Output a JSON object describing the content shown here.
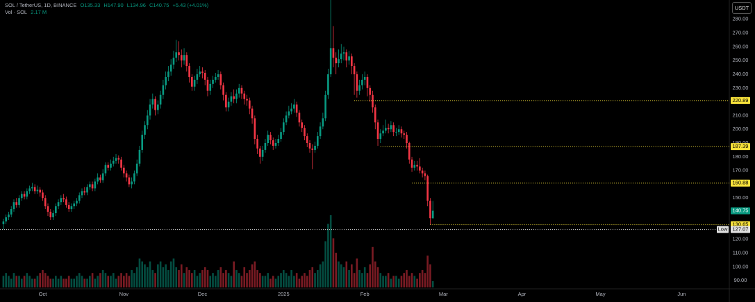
{
  "chart_data": {
    "type": "candlestick",
    "symbol": "SOL / TetherUS, 1D, BINANCE",
    "ohlc_labels": [
      "O135.33",
      "H147.90",
      "L134.96",
      "C140.75"
    ],
    "change_label": "+5.43 (+4.01%)",
    "volume_title": "Vol · SOL",
    "volume_last_label": "2.17 M",
    "currency": "USDT",
    "low_label": "Low",
    "up_color": "#089981",
    "down_color": "#f23645",
    "level_color": "#f7e13b",
    "grid": false,
    "xlim": [
      -1.3,
      277.2
    ],
    "xticks": [
      {
        "value": 15,
        "label": "Oct"
      },
      {
        "value": 46,
        "label": "Nov"
      },
      {
        "value": 76,
        "label": "Dec"
      },
      {
        "value": 107,
        "label": "2025"
      },
      {
        "value": 138,
        "label": "Feb"
      },
      {
        "value": 168,
        "label": "Mar"
      },
      {
        "value": 198,
        "label": "Apr"
      },
      {
        "value": 228,
        "label": "May"
      },
      {
        "value": 259,
        "label": "Jun"
      }
    ],
    "ylim": [
      85,
      294
    ],
    "yticks": [
      {
        "value": 280,
        "label": "280.00"
      },
      {
        "value": 270,
        "label": "270.00"
      },
      {
        "value": 260,
        "label": "260.00"
      },
      {
        "value": 250,
        "label": "250.00"
      },
      {
        "value": 240,
        "label": "240.00"
      },
      {
        "value": 230,
        "label": "230.00"
      },
      {
        "value": 210,
        "label": "210.00"
      },
      {
        "value": 200,
        "label": "200.00"
      },
      {
        "value": 190,
        "label": "190.00"
      },
      {
        "value": 180,
        "label": "180.00"
      },
      {
        "value": 170,
        "label": "170.00"
      },
      {
        "value": 150,
        "label": "150.00"
      },
      {
        "value": 120,
        "label": "120.00"
      },
      {
        "value": 110,
        "label": "110.00"
      },
      {
        "value": 100,
        "label": "100.00"
      },
      {
        "value": 90,
        "label": "90.00"
      }
    ],
    "levels": [
      {
        "value": 220.89,
        "from": 134
      },
      {
        "value": 187.39,
        "from": 144
      },
      {
        "value": 160.88,
        "from": 156
      },
      {
        "value": 130.65,
        "from": 163
      }
    ],
    "candles": [
      [
        131,
        135,
        127.07,
        133
      ],
      [
        133,
        138,
        131,
        136
      ],
      [
        136,
        140,
        134,
        138
      ],
      [
        138,
        144,
        136,
        142
      ],
      [
        142,
        149,
        140,
        147
      ],
      [
        147,
        150,
        143,
        145
      ],
      [
        145,
        152,
        143,
        150
      ],
      [
        150,
        155,
        148,
        153
      ],
      [
        153,
        155,
        149,
        151
      ],
      [
        151,
        157,
        149,
        155
      ],
      [
        155,
        159,
        153,
        157
      ],
      [
        157,
        161,
        155,
        158
      ],
      [
        158,
        160,
        153,
        155
      ],
      [
        155,
        159,
        153,
        156
      ],
      [
        156,
        158,
        151,
        154
      ],
      [
        154,
        156,
        148,
        150
      ],
      [
        150,
        152,
        142,
        144
      ],
      [
        144,
        146,
        137,
        140
      ],
      [
        140,
        142,
        134,
        136
      ],
      [
        136,
        141,
        134,
        139
      ],
      [
        139,
        146,
        137,
        144
      ],
      [
        144,
        149,
        142,
        147
      ],
      [
        147,
        152,
        145,
        150
      ],
      [
        150,
        153,
        147,
        149
      ],
      [
        149,
        151,
        143,
        145
      ],
      [
        145,
        147,
        140,
        142
      ],
      [
        142,
        146,
        140,
        144
      ],
      [
        144,
        148,
        142,
        146
      ],
      [
        146,
        150,
        144,
        148
      ],
      [
        148,
        154,
        146,
        152
      ],
      [
        152,
        157,
        150,
        155
      ],
      [
        155,
        158,
        152,
        154
      ],
      [
        154,
        160,
        152,
        158
      ],
      [
        158,
        162,
        156,
        160
      ],
      [
        160,
        162,
        155,
        157
      ],
      [
        157,
        164,
        155,
        162
      ],
      [
        162,
        168,
        160,
        165
      ],
      [
        165,
        167,
        161,
        163
      ],
      [
        163,
        171,
        161,
        168
      ],
      [
        168,
        176,
        166,
        174
      ],
      [
        174,
        176,
        170,
        172
      ],
      [
        172,
        178,
        170,
        175
      ],
      [
        175,
        180,
        173,
        177
      ],
      [
        177,
        182,
        175,
        179
      ],
      [
        179,
        181,
        175,
        178
      ],
      [
        178,
        180,
        170,
        172
      ],
      [
        172,
        174,
        165,
        168
      ],
      [
        168,
        170,
        162,
        165
      ],
      [
        165,
        167,
        158,
        160
      ],
      [
        160,
        165,
        157,
        162
      ],
      [
        162,
        170,
        160,
        168
      ],
      [
        168,
        178,
        166,
        175
      ],
      [
        175,
        188,
        173,
        185
      ],
      [
        185,
        199,
        183,
        196
      ],
      [
        196,
        206,
        193,
        203
      ],
      [
        203,
        214,
        200,
        210
      ],
      [
        210,
        222,
        207,
        218
      ],
      [
        218,
        226,
        215,
        222
      ],
      [
        222,
        224,
        210,
        214
      ],
      [
        214,
        221,
        211,
        218
      ],
      [
        218,
        228,
        215,
        225
      ],
      [
        225,
        236,
        222,
        232
      ],
      [
        232,
        242,
        229,
        238
      ],
      [
        238,
        246,
        235,
        242
      ],
      [
        242,
        251,
        239,
        247
      ],
      [
        247,
        257,
        244,
        252
      ],
      [
        252,
        265,
        249,
        256
      ],
      [
        256,
        264,
        250,
        254
      ],
      [
        254,
        258,
        245,
        250
      ],
      [
        250,
        259,
        247,
        254
      ],
      [
        254,
        256,
        242,
        246
      ],
      [
        246,
        248,
        234,
        238
      ],
      [
        238,
        240,
        228,
        231
      ],
      [
        231,
        239,
        228,
        236
      ],
      [
        236,
        244,
        233,
        240
      ],
      [
        240,
        246,
        238,
        242
      ],
      [
        242,
        245,
        237,
        241
      ],
      [
        241,
        243,
        232,
        236
      ],
      [
        236,
        238,
        224,
        228
      ],
      [
        228,
        236,
        225,
        233
      ],
      [
        233,
        239,
        230,
        236
      ],
      [
        236,
        241,
        234,
        238
      ],
      [
        238,
        243,
        236,
        240
      ],
      [
        240,
        242,
        229,
        232
      ],
      [
        232,
        234,
        221,
        225
      ],
      [
        225,
        227,
        213,
        216
      ],
      [
        216,
        223,
        213,
        220
      ],
      [
        220,
        227,
        217,
        224
      ],
      [
        224,
        229,
        219,
        222
      ],
      [
        222,
        229,
        219,
        226
      ],
      [
        226,
        233,
        223,
        230
      ],
      [
        230,
        232,
        222,
        226
      ],
      [
        226,
        228,
        218,
        222
      ],
      [
        222,
        225,
        217,
        221
      ],
      [
        221,
        223,
        211,
        215
      ],
      [
        215,
        217,
        204,
        208
      ],
      [
        208,
        210,
        189,
        193
      ],
      [
        193,
        196,
        182,
        186
      ],
      [
        186,
        188,
        175,
        180
      ],
      [
        180,
        188,
        177,
        185
      ],
      [
        185,
        193,
        183,
        190
      ],
      [
        190,
        199,
        188,
        196
      ],
      [
        196,
        198,
        189,
        192
      ],
      [
        192,
        194,
        185,
        188
      ],
      [
        188,
        193,
        186,
        190
      ],
      [
        190,
        196,
        188,
        193
      ],
      [
        193,
        201,
        191,
        198
      ],
      [
        198,
        208,
        196,
        205
      ],
      [
        205,
        213,
        203,
        210
      ],
      [
        210,
        217,
        208,
        213
      ],
      [
        213,
        219,
        211,
        215
      ],
      [
        215,
        222,
        212,
        218
      ],
      [
        218,
        220,
        209,
        212
      ],
      [
        212,
        214,
        202,
        205
      ],
      [
        205,
        207,
        198,
        201
      ],
      [
        201,
        203,
        192,
        195
      ],
      [
        195,
        197,
        187,
        190
      ],
      [
        190,
        192,
        183,
        186
      ],
      [
        186,
        189,
        171,
        185
      ],
      [
        185,
        191,
        183,
        188
      ],
      [
        188,
        198,
        186,
        195
      ],
      [
        195,
        205,
        193,
        202
      ],
      [
        202,
        212,
        200,
        208
      ],
      [
        208,
        228,
        206,
        225
      ],
      [
        225,
        244,
        222,
        240
      ],
      [
        240,
        294,
        238,
        259
      ],
      [
        259,
        275,
        245,
        252
      ],
      [
        252,
        256,
        240,
        248
      ],
      [
        248,
        258,
        245,
        251
      ],
      [
        251,
        262,
        248,
        255
      ],
      [
        255,
        260,
        250,
        256
      ],
      [
        256,
        258,
        245,
        250
      ],
      [
        250,
        257,
        247,
        253
      ],
      [
        253,
        255,
        240,
        246
      ],
      [
        246,
        248,
        225,
        240
      ],
      [
        240,
        242,
        223,
        228
      ],
      [
        228,
        236,
        225,
        232
      ],
      [
        232,
        240,
        229,
        236
      ],
      [
        236,
        242,
        232,
        238
      ],
      [
        238,
        240,
        224,
        230
      ],
      [
        230,
        232,
        220,
        225
      ],
      [
        225,
        228,
        212,
        216
      ],
      [
        216,
        218,
        200,
        205
      ],
      [
        205,
        207,
        188,
        193
      ],
      [
        193,
        200,
        190,
        197
      ],
      [
        197,
        203,
        195,
        199
      ],
      [
        199,
        207,
        197,
        201
      ],
      [
        201,
        204,
        197,
        200
      ],
      [
        200,
        206,
        198,
        203
      ],
      [
        203,
        205,
        195,
        198
      ],
      [
        198,
        201,
        195,
        198
      ],
      [
        198,
        203,
        196,
        200
      ],
      [
        200,
        202,
        194,
        197
      ],
      [
        197,
        199,
        193,
        196
      ],
      [
        196,
        198,
        186,
        190
      ],
      [
        190,
        191,
        175,
        178
      ],
      [
        178,
        180,
        169,
        172
      ],
      [
        172,
        177,
        170,
        174
      ],
      [
        174,
        177,
        170,
        173
      ],
      [
        173,
        179,
        168,
        170
      ],
      [
        170,
        172,
        165,
        168
      ],
      [
        168,
        170,
        163,
        166
      ],
      [
        166,
        167,
        144,
        148
      ],
      [
        148,
        150,
        130.65,
        135.33
      ],
      [
        135.33,
        147.9,
        134.96,
        140.75
      ]
    ],
    "volume": [
      4,
      5,
      4,
      3,
      5,
      4,
      4,
      3,
      4,
      5,
      4,
      3,
      3,
      4,
      5,
      6,
      5,
      4,
      3,
      3,
      4,
      3,
      4,
      3,
      3,
      4,
      3,
      3,
      4,
      5,
      4,
      3,
      3,
      4,
      5,
      3,
      4,
      5,
      6,
      5,
      4,
      4,
      5,
      3,
      4,
      5,
      4,
      5,
      4,
      6,
      5,
      7,
      10,
      9,
      8,
      7,
      9,
      6,
      5,
      8,
      9,
      7,
      8,
      6,
      9,
      10,
      7,
      6,
      8,
      5,
      7,
      6,
      5,
      6,
      4,
      5,
      6,
      7,
      6,
      4,
      5,
      4,
      6,
      7,
      5,
      6,
      5,
      4,
      9,
      6,
      5,
      4,
      7,
      5,
      6,
      8,
      9,
      6,
      5,
      4,
      4,
      5,
      3,
      4,
      3,
      4,
      5,
      6,
      5,
      4,
      6,
      4,
      5,
      3,
      4,
      5,
      4,
      6,
      7,
      5,
      6,
      8,
      9,
      16,
      22,
      25,
      17,
      12,
      9,
      8,
      7,
      9,
      6,
      8,
      5,
      10,
      6,
      5,
      7,
      5,
      8,
      14,
      9,
      7,
      5,
      4,
      4,
      5,
      3,
      4,
      4,
      3,
      4,
      5,
      6,
      4,
      5,
      4,
      3,
      5,
      6,
      5,
      11,
      8,
      2.17
    ]
  }
}
